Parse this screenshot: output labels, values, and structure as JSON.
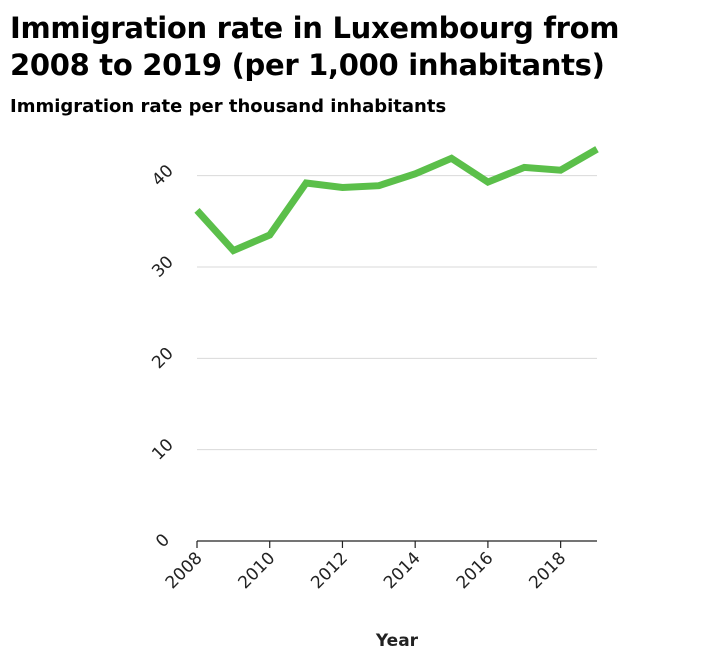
{
  "chart_data": {
    "type": "line",
    "title": "Immigration rate in Luxembourg from 2008 to 2019 (per 1,000 inhabitants)",
    "ylabel": "Immigration rate per thousand inhabitants",
    "xlabel": "Year",
    "x": [
      2008,
      2009,
      2010,
      2011,
      2012,
      2013,
      2014,
      2015,
      2016,
      2017,
      2018,
      2019
    ],
    "series": [
      {
        "values": [
          36.2,
          31.8,
          33.5,
          39.2,
          38.7,
          38.9,
          40.2,
          41.9,
          39.3,
          40.9,
          40.6,
          42.9
        ]
      }
    ],
    "xlim": [
      2008,
      2019
    ],
    "ylim": [
      0,
      45
    ],
    "xticks": [
      2008,
      2010,
      2012,
      2014,
      2016,
      2018
    ],
    "yticks": [
      0,
      10,
      20,
      30,
      40
    ],
    "grid": "horizontal",
    "line_color": "#5bbf4a",
    "grid_color": "#d9d9d9",
    "axis_color": "#222222"
  }
}
